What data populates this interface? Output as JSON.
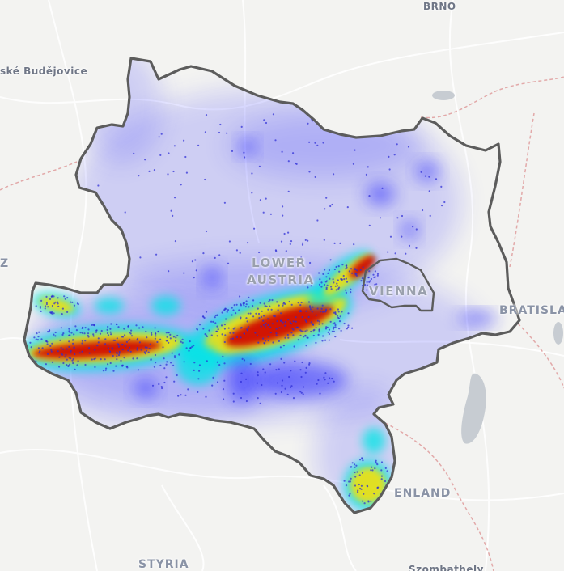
{
  "map": {
    "labels": {
      "brno": "BRNO",
      "budejovice": "ské Budějovice",
      "z": "Z",
      "lower": "LOWER",
      "austria": "AUSTRIA",
      "vienna": "VIENNA",
      "bratislava": "BRATISLAV",
      "burgenland": "ENLAND",
      "styria": "STYRIA",
      "szombathely": "Szombathely"
    },
    "colors": {
      "background": "#f3f3f1",
      "road": "#ffffff",
      "country_border": "#e2a9a9",
      "region_border": "#5c5c5c",
      "water": "#c7ccd2",
      "heat_low": "#2a2aff",
      "heat_mid": "#00e5e5",
      "heat_high": "#ffe000",
      "heat_max": "#d00000"
    }
  }
}
